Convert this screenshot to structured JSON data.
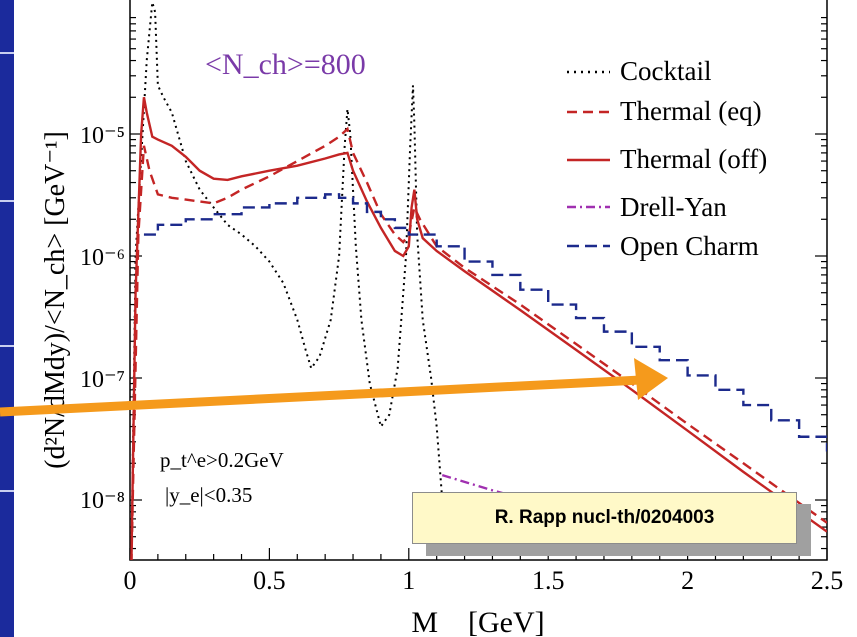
{
  "chart_data": {
    "type": "line",
    "y_scale": "log",
    "xlim": [
      0,
      2.5
    ],
    "ylim": [
      3e-09,
      0.0001
    ],
    "xlabel": "M    [GeV]",
    "ylabel": "(d²N/dMdy)/<N_ch> [GeV⁻¹]",
    "x_ticks": [
      0,
      0.5,
      1,
      1.5,
      2,
      2.5
    ],
    "x_tick_labels": [
      "0",
      "0.5",
      "1",
      "1.5",
      "2",
      "2.5"
    ],
    "y_ticks": [
      1e-08,
      1e-07,
      1e-06,
      1e-05
    ],
    "y_tick_labels": [
      "10⁻⁸",
      "10⁻⁷",
      "10⁻⁶",
      "10⁻⁵"
    ],
    "legend_position": "top-right",
    "annotations": {
      "multiplicity": "<N_ch>=800",
      "cut_pt": "p_t^e>0.2GeV",
      "cut_y": "|y_e|<0.35"
    },
    "series": [
      {
        "name": "Cocktail",
        "color": "#000000",
        "style": "dotted",
        "x": [
          0.005,
          0.02,
          0.06,
          0.08,
          0.09,
          0.1,
          0.12,
          0.15,
          0.2,
          0.25,
          0.3,
          0.35,
          0.4,
          0.45,
          0.5,
          0.55,
          0.6,
          0.63,
          0.65,
          0.68,
          0.72,
          0.75,
          0.77,
          0.78,
          0.79,
          0.81,
          0.83,
          0.86,
          0.9,
          0.93,
          0.96,
          0.99,
          1.005,
          1.015,
          1.02,
          1.03,
          1.05,
          1.08,
          1.1,
          1.12,
          1.14
        ],
        "y": [
          3e-09,
          1e-06,
          4e-05,
          0.00012,
          0.0001,
          2.5e-05,
          2e-05,
          1.5e-05,
          6e-06,
          3.5e-06,
          2.5e-06,
          1.8e-06,
          1.5e-06,
          1.2e-06,
          9e-07,
          6e-07,
          3e-07,
          1.7e-07,
          1.2e-07,
          1.5e-07,
          3e-07,
          1e-06,
          8e-06,
          1.6e-05,
          1e-05,
          1.2e-06,
          3e-07,
          9e-08,
          4e-08,
          5e-08,
          1.2e-07,
          1e-06,
          8e-06,
          2.5e-05,
          1.2e-05,
          1.5e-06,
          3e-07,
          1e-07,
          4e-08,
          1e-08,
          4e-09
        ]
      },
      {
        "name": "Thermal (eq)",
        "color": "#c42525",
        "style": "dashed",
        "x": [
          0.005,
          0.03,
          0.05,
          0.07,
          0.1,
          0.15,
          0.2,
          0.3,
          0.35,
          0.4,
          0.5,
          0.6,
          0.7,
          0.75,
          0.78,
          0.8,
          0.85,
          0.9,
          0.95,
          0.98,
          1.0,
          1.02,
          1.04,
          1.1,
          1.2,
          1.4,
          1.6,
          1.8,
          2.0,
          2.2,
          2.5
        ],
        "y": [
          3e-09,
          1.5e-06,
          8e-06,
          5e-06,
          3.2e-06,
          3e-06,
          2.9e-06,
          2.7e-06,
          3e-06,
          3.5e-06,
          4.5e-06,
          6e-06,
          8e-06,
          9.5e-06,
          1.1e-05,
          7e-06,
          4e-06,
          2.2e-06,
          1.5e-06,
          1.3e-06,
          1.5e-06,
          2.5e-06,
          2e-06,
          1.2e-06,
          8e-07,
          4e-07,
          1.9e-07,
          9e-08,
          4.2e-08,
          2e-08,
          6.5e-09
        ]
      },
      {
        "name": "Thermal (off)",
        "color": "#c42525",
        "style": "solid",
        "x": [
          0.005,
          0.02,
          0.04,
          0.05,
          0.06,
          0.08,
          0.1,
          0.15,
          0.2,
          0.25,
          0.3,
          0.35,
          0.4,
          0.5,
          0.6,
          0.7,
          0.75,
          0.78,
          0.8,
          0.85,
          0.9,
          0.95,
          0.98,
          1.0,
          1.01,
          1.02,
          1.03,
          1.05,
          1.1,
          1.2,
          1.4,
          1.6,
          1.8,
          2.0,
          2.2,
          2.5
        ],
        "y": [
          3e-09,
          5e-07,
          1e-05,
          2e-05,
          1.5e-05,
          9.5e-06,
          9e-06,
          8e-06,
          6.5e-06,
          5e-06,
          4.3e-06,
          4.2e-06,
          4.5e-06,
          5e-06,
          5.5e-06,
          6.3e-06,
          6.8e-06,
          7e-06,
          5e-06,
          2.8e-06,
          1.7e-06,
          1.1e-06,
          1e-06,
          1.2e-06,
          2.5e-06,
          3.5e-06,
          2e-06,
          1.4e-06,
          1.1e-06,
          7.5e-07,
          3.6e-07,
          1.7e-07,
          8e-08,
          3.7e-08,
          1.7e-08,
          5.5e-09
        ]
      },
      {
        "name": "Drell-Yan",
        "color": "#a030b0",
        "style": "dashdot",
        "x": [
          1.12,
          1.3,
          1.5,
          1.7,
          1.9,
          2.1
        ],
        "y": [
          1.6e-08,
          1.2e-08,
          9e-09,
          7e-09,
          5.5e-09,
          4.3e-09
        ]
      },
      {
        "name": "Open Charm",
        "color": "#1c2a8c",
        "style": "dashed-step",
        "x": [
          0.05,
          0.1,
          0.2,
          0.3,
          0.4,
          0.5,
          0.6,
          0.7,
          0.75,
          0.8,
          0.85,
          0.9,
          0.95,
          1.0,
          1.1,
          1.2,
          1.3,
          1.4,
          1.5,
          1.6,
          1.7,
          1.8,
          1.9,
          2.0,
          2.1,
          2.2,
          2.3,
          2.4,
          2.5
        ],
        "y": [
          1.5e-06,
          1.8e-06,
          2e-06,
          2.2e-06,
          2.5e-06,
          2.7e-06,
          3e-06,
          3.2e-06,
          3e-06,
          2.7e-06,
          2.3e-06,
          2e-06,
          1.7e-06,
          1.5e-06,
          1.2e-06,
          9e-07,
          7e-07,
          5.3e-07,
          4e-07,
          3.1e-07,
          2.4e-07,
          1.8e-07,
          1.4e-07,
          1.05e-07,
          8e-08,
          6e-08,
          4.5e-08,
          3.3e-08,
          2.5e-08
        ]
      }
    ]
  },
  "credit_box": {
    "label": "R. Rapp nucl-th/0204003"
  },
  "colors": {
    "sidebar": "#1b2a9c",
    "arrow": "#f59a1c",
    "credit_bg": "#fff9c8",
    "credit_shadow": "#a0a0a0"
  }
}
